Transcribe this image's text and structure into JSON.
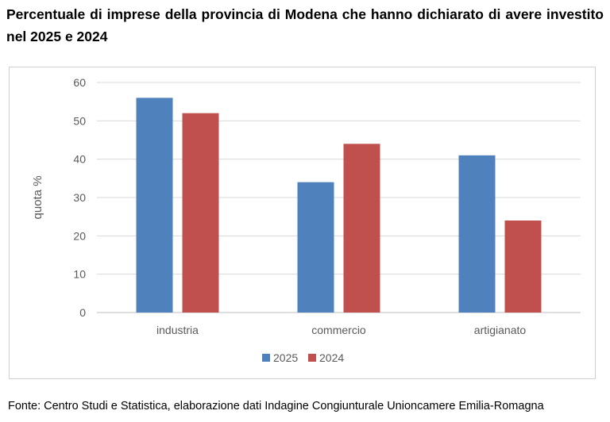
{
  "title": "Percentuale di imprese della provincia di Modena che hanno dichiarato di avere investito nel 2025 e 2024",
  "source": "Fonte: Centro Studi e Statistica, elaborazione dati Indagine Congiunturale Unioncamere Emilia-Romagna",
  "chart_data": {
    "type": "bar",
    "title": "",
    "xlabel": "",
    "ylabel": "quota %",
    "categories": [
      "industria",
      "commercio",
      "artigianato"
    ],
    "series": [
      {
        "name": "2025",
        "values": [
          56,
          34,
          41
        ],
        "color": "#4f81bd"
      },
      {
        "name": "2024",
        "values": [
          52,
          44,
          24
        ],
        "color": "#c0504d"
      }
    ],
    "ylim": [
      0,
      60
    ],
    "yticks": [
      0,
      10,
      20,
      30,
      40,
      50,
      60
    ],
    "grid": true,
    "legend_position": "bottom"
  }
}
